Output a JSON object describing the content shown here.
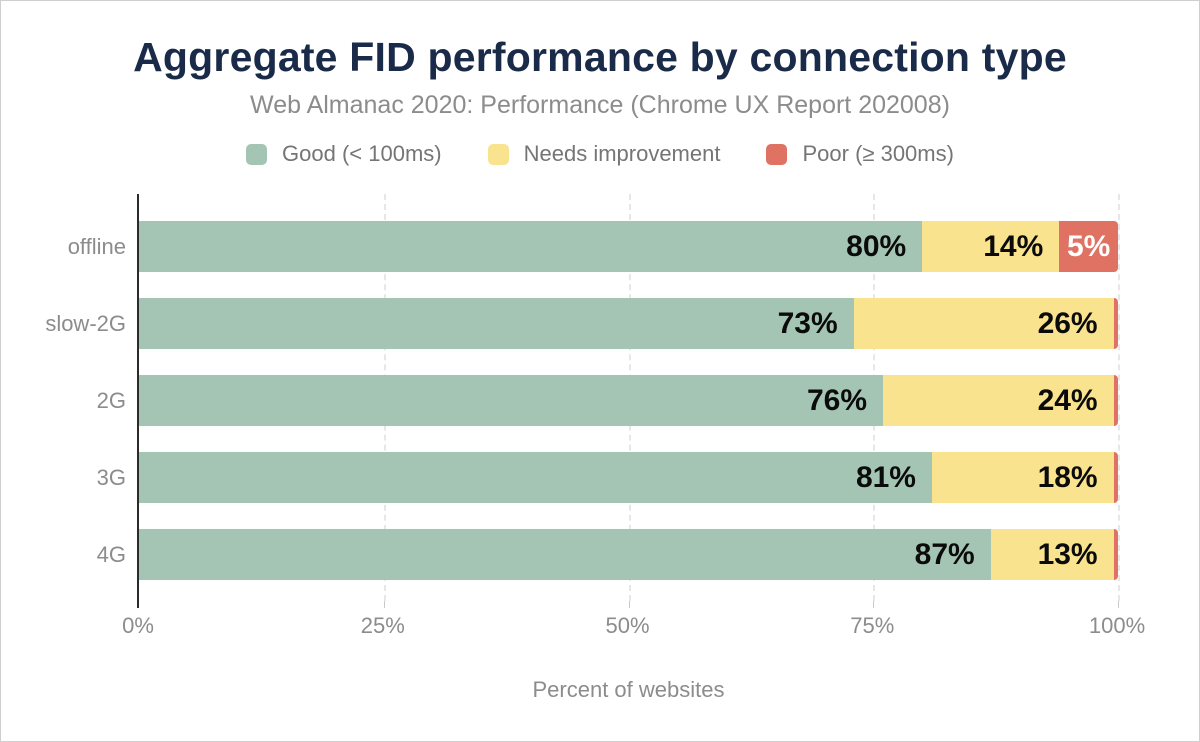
{
  "header": {
    "title": "Aggregate FID performance by connection type",
    "subtitle": "Web Almanac 2020: Performance (Chrome UX Report 202008)"
  },
  "legend": {
    "items": [
      {
        "label": "Good (< 100ms)",
        "color": "#a4c5b4"
      },
      {
        "label": "Needs improvement",
        "color": "#fae38e"
      },
      {
        "label": "Poor (≥ 300ms)",
        "color": "#e07264"
      }
    ]
  },
  "chart_data": {
    "type": "bar",
    "orientation": "horizontal-stacked",
    "title": "Aggregate FID performance by connection type",
    "subtitle": "Web Almanac 2020: Performance (Chrome UX Report 202008)",
    "categories": [
      "offline",
      "slow-2G",
      "2G",
      "3G",
      "4G"
    ],
    "series": [
      {
        "name": "Good (< 100ms)",
        "color": "#a4c5b4",
        "values": [
          80,
          73,
          76,
          81,
          87
        ]
      },
      {
        "name": "Needs improvement",
        "color": "#fae38e",
        "values": [
          14,
          26,
          24,
          18,
          13
        ]
      },
      {
        "name": "Poor (≥ 300ms)",
        "color": "#e07264",
        "values": [
          5,
          1,
          1,
          1,
          1
        ]
      }
    ],
    "poor_render_pct": [
      6,
      0.45,
      0.45,
      0.45,
      0.45
    ],
    "label_min_display": 2,
    "x_ticks": [
      "0%",
      "25%",
      "50%",
      "75%",
      "100%"
    ],
    "x_tick_positions": [
      0,
      25,
      50,
      75,
      100
    ],
    "xlim": [
      0,
      100
    ],
    "xlabel": "Percent of websites",
    "grid": "dashed-vertical",
    "legend_position": "top"
  },
  "colors": {
    "title": "#1a2b49",
    "muted_text": "#8c8c8c",
    "legend_text": "#757575",
    "axis": "#2b2b2b",
    "gridline": "#e7e7e7",
    "bar_label": "#0b0b0b",
    "bar_label_on_poor": "#ffffff",
    "frame_border": "#cfcfcf",
    "background": "#ffffff"
  }
}
